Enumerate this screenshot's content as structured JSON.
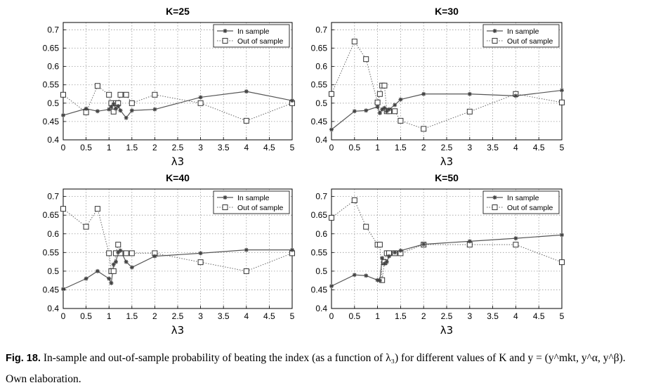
{
  "caption": {
    "label": "Fig. 18.",
    "text": "In-sample and out-of-sample probability of beating the index (as a function of λ₃) for different values of K and y = (y^mkt, y^α, y^β).",
    "source": "Own elaboration."
  },
  "chart_data": [
    {
      "type": "line",
      "title": "K=25",
      "xlabel": "λ3",
      "ylabel": "",
      "xlim": [
        0,
        5
      ],
      "ylim": [
        0.4,
        0.72
      ],
      "xticks": [
        "0",
        "0.5",
        "1",
        "1.5",
        "2",
        "2.5",
        "3",
        "3.5",
        "4",
        "4.5",
        "5"
      ],
      "yticks": [
        "0.4",
        "0.45",
        "0.5",
        "0.55",
        "0.6",
        "0.65",
        "0.7"
      ],
      "grid": true,
      "legend": "top-right",
      "series": [
        {
          "name": "In sample",
          "style": "solid-star",
          "x": [
            0,
            0.5,
            0.75,
            1,
            1.05,
            1.1,
            1.15,
            1.2,
            1.25,
            1.375,
            1.5,
            2,
            3,
            4,
            5
          ],
          "y": [
            0.467,
            0.485,
            0.478,
            0.483,
            0.49,
            0.498,
            0.485,
            0.492,
            0.48,
            0.46,
            0.48,
            0.483,
            0.516,
            0.532,
            0.507
          ]
        },
        {
          "name": "Out of sample",
          "style": "dotted-square",
          "x": [
            0,
            0.5,
            0.75,
            1,
            1.05,
            1.1,
            1.15,
            1.2,
            1.25,
            1.375,
            1.5,
            2,
            3,
            4,
            5
          ],
          "y": [
            0.523,
            0.475,
            0.547,
            0.523,
            0.5,
            0.477,
            0.5,
            0.5,
            0.523,
            0.523,
            0.5,
            0.523,
            0.5,
            0.452,
            0.5
          ]
        }
      ]
    },
    {
      "type": "line",
      "title": "K=30",
      "xlabel": "λ3",
      "ylabel": "",
      "xlim": [
        0,
        5
      ],
      "ylim": [
        0.4,
        0.72
      ],
      "xticks": [
        "0",
        "0.5",
        "1",
        "1.5",
        "2",
        "2.5",
        "3",
        "3.5",
        "4",
        "4.5",
        "5"
      ],
      "yticks": [
        "0.4",
        "0.45",
        "0.5",
        "0.55",
        "0.6",
        "0.65",
        "0.7"
      ],
      "grid": true,
      "legend": "top-right",
      "series": [
        {
          "name": "In sample",
          "style": "solid-star",
          "x": [
            0,
            0.5,
            0.75,
            1,
            1.05,
            1.1,
            1.15,
            1.2,
            1.25,
            1.375,
            1.5,
            2,
            3,
            4,
            5
          ],
          "y": [
            0.428,
            0.478,
            0.48,
            0.49,
            0.473,
            0.483,
            0.487,
            0.478,
            0.483,
            0.495,
            0.51,
            0.525,
            0.525,
            0.52,
            0.535
          ]
        },
        {
          "name": "Out of sample",
          "style": "dotted-square",
          "x": [
            0,
            0.5,
            0.75,
            1,
            1.05,
            1.1,
            1.15,
            1.2,
            1.25,
            1.375,
            1.5,
            2,
            3,
            4,
            5
          ],
          "y": [
            0.525,
            0.668,
            0.62,
            0.502,
            0.525,
            0.548,
            0.548,
            0.478,
            0.478,
            0.478,
            0.452,
            0.43,
            0.477,
            0.525,
            0.502
          ]
        }
      ]
    },
    {
      "type": "line",
      "title": "K=40",
      "xlabel": "λ3",
      "ylabel": "",
      "xlim": [
        0,
        5
      ],
      "ylim": [
        0.4,
        0.72
      ],
      "xticks": [
        "0",
        "0.5",
        "1",
        "1.5",
        "2",
        "2.5",
        "3",
        "3.5",
        "4",
        "4.5",
        "5"
      ],
      "yticks": [
        "0.4",
        "0.45",
        "0.5",
        "0.55",
        "0.6",
        "0.65",
        "0.7"
      ],
      "grid": true,
      "legend": "top-right",
      "series": [
        {
          "name": "In sample",
          "style": "solid-star",
          "x": [
            0,
            0.5,
            0.75,
            1,
            1.05,
            1.1,
            1.15,
            1.2,
            1.25,
            1.375,
            1.5,
            2,
            3,
            4,
            5
          ],
          "y": [
            0.452,
            0.48,
            0.5,
            0.48,
            0.468,
            0.518,
            0.525,
            0.55,
            0.555,
            0.525,
            0.51,
            0.54,
            0.548,
            0.557,
            0.557
          ]
        },
        {
          "name": "Out of sample",
          "style": "dotted-square",
          "x": [
            0,
            0.5,
            0.75,
            1,
            1.05,
            1.1,
            1.15,
            1.2,
            1.25,
            1.375,
            1.5,
            2,
            3,
            4,
            5
          ],
          "y": [
            0.667,
            0.619,
            0.667,
            0.548,
            0.5,
            0.5,
            0.548,
            0.571,
            0.548,
            0.548,
            0.548,
            0.548,
            0.524,
            0.5,
            0.548
          ]
        }
      ]
    },
    {
      "type": "line",
      "title": "K=50",
      "xlabel": "λ3",
      "ylabel": "",
      "xlim": [
        0,
        5
      ],
      "ylim": [
        0.4,
        0.72
      ],
      "xticks": [
        "0",
        "0.5",
        "1",
        "1.5",
        "2",
        "2.5",
        "3",
        "3.5",
        "4",
        "4.5",
        "5"
      ],
      "yticks": [
        "0.4",
        "0.45",
        "0.5",
        "0.55",
        "0.6",
        "0.65",
        "0.7"
      ],
      "grid": true,
      "legend": "top-right",
      "series": [
        {
          "name": "In sample",
          "style": "solid-star",
          "x": [
            0,
            0.5,
            0.75,
            1,
            1.05,
            1.1,
            1.15,
            1.2,
            1.25,
            1.375,
            1.5,
            2,
            3,
            4,
            5
          ],
          "y": [
            0.46,
            0.49,
            0.488,
            0.476,
            0.475,
            0.535,
            0.52,
            0.525,
            0.54,
            0.55,
            0.555,
            0.572,
            0.58,
            0.588,
            0.597
          ]
        },
        {
          "name": "Out of sample",
          "style": "dotted-square",
          "x": [
            0,
            0.5,
            0.75,
            1,
            1.05,
            1.1,
            1.15,
            1.2,
            1.25,
            1.375,
            1.5,
            2,
            3,
            4,
            5
          ],
          "y": [
            0.643,
            0.69,
            0.619,
            0.571,
            0.571,
            0.476,
            0.524,
            0.548,
            0.548,
            0.548,
            0.548,
            0.571,
            0.571,
            0.571,
            0.524
          ]
        }
      ]
    }
  ]
}
